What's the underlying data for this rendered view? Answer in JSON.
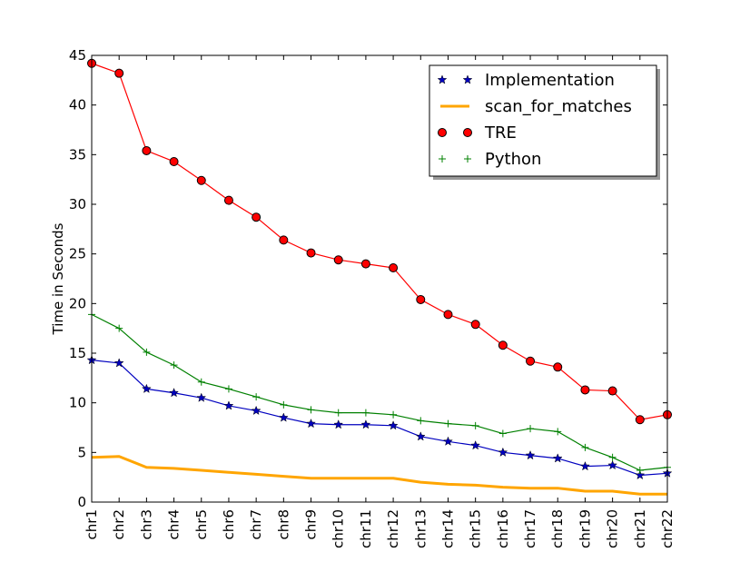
{
  "chart_data": {
    "type": "line",
    "title": "",
    "xlabel": "",
    "ylabel": "Time in Seconds",
    "ylim": [
      0,
      45
    ],
    "yticks": [
      0,
      5,
      10,
      15,
      20,
      25,
      30,
      35,
      40,
      45
    ],
    "grid": false,
    "legend_position": "top-right",
    "categories": [
      "chr1",
      "chr2",
      "chr3",
      "chr4",
      "chr5",
      "chr6",
      "chr7",
      "chr8",
      "chr9",
      "chr10",
      "chr11",
      "chr12",
      "chr13",
      "chr14",
      "chr15",
      "chr16",
      "chr17",
      "chr18",
      "chr19",
      "chr20",
      "chr21",
      "chr22"
    ],
    "series": [
      {
        "name": "Implementation",
        "color": "#0000bf",
        "marker": "star",
        "line": true,
        "values": [
          14.3,
          14.0,
          11.4,
          11.0,
          10.5,
          9.7,
          9.2,
          8.5,
          7.9,
          7.8,
          7.8,
          7.7,
          6.6,
          6.1,
          5.7,
          5.0,
          4.7,
          4.4,
          3.6,
          3.7,
          2.7,
          2.9
        ]
      },
      {
        "name": "scan_for_matches",
        "color": "#ffa500",
        "marker": "none",
        "line": true,
        "values": [
          4.5,
          4.6,
          3.5,
          3.4,
          3.2,
          3.0,
          2.8,
          2.6,
          2.4,
          2.4,
          2.4,
          2.4,
          2.0,
          1.8,
          1.7,
          1.5,
          1.4,
          1.4,
          1.1,
          1.1,
          0.8,
          0.8
        ]
      },
      {
        "name": "TRE",
        "color": "#ff0000",
        "marker": "circle",
        "line": true,
        "values": [
          44.2,
          43.2,
          35.4,
          34.3,
          32.4,
          30.4,
          28.7,
          26.4,
          25.1,
          24.4,
          24.0,
          23.6,
          20.4,
          18.9,
          17.9,
          15.8,
          14.2,
          13.6,
          11.3,
          11.2,
          8.3,
          8.8
        ]
      },
      {
        "name": "Python",
        "color": "#008000",
        "marker": "plus",
        "line": true,
        "values": [
          18.9,
          17.5,
          15.1,
          13.8,
          12.1,
          11.4,
          10.6,
          9.8,
          9.3,
          9.0,
          9.0,
          8.8,
          8.2,
          7.9,
          7.7,
          6.9,
          7.4,
          7.1,
          5.5,
          4.5,
          3.2,
          3.5
        ]
      }
    ]
  }
}
